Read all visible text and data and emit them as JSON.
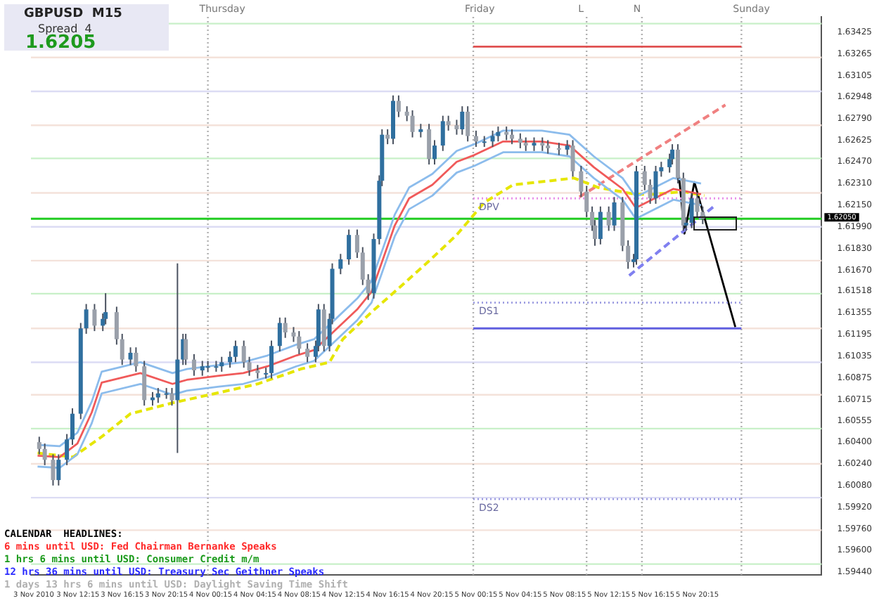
{
  "chart_data": {
    "type": "candlestick",
    "title": "GBPUSD  M15",
    "legend": false,
    "grid": false,
    "colors": [
      "#9aa0aa",
      "#9aa0aa",
      "#9aa0aa",
      "#2f6f9f",
      "#2f6f9f",
      "#2f6f9f",
      "#2f6f9f",
      "#2f6f9f",
      "#9aa0aa",
      "#2f6f9f",
      "#2f6f9f",
      "#9aa0aa",
      "#9aa0aa",
      "#2f6f9f",
      "#9aa0aa",
      "#9aa0aa",
      "#2f6f9f",
      "#2f6f9f",
      "#2f6f9f",
      "#9aa0aa",
      "#2f6f9f",
      "#2f6f9f",
      "#9aa0aa",
      "#9aa0aa",
      "#2f6f9f",
      "#2f6f9f",
      "#2f6f9f",
      "#2f6f9f",
      "#2f6f9f",
      "#2f6f9f",
      "#9aa0aa",
      "#9aa0aa",
      "#9aa0aa",
      "#2f6f9f",
      "#2f6f9f",
      "#2f6f9f",
      "#9aa0aa",
      "#9aa0aa",
      "#9aa0aa",
      "#9aa0aa",
      "#2f6f9f",
      "#2f6f9f",
      "#9aa0aa",
      "#2f6f9f",
      "#2f6f9f",
      "#2f6f9f",
      "#2f6f9f",
      "#9aa0aa",
      "#9aa0aa",
      "#9aa0aa",
      "#2f6f9f",
      "#2f6f9f",
      "#2f6f9f",
      "#9aa0aa",
      "#2f6f9f",
      "#9aa0aa",
      "#9aa0aa",
      "#9aa0aa",
      "#2f6f9f",
      "#9aa0aa",
      "#2f6f9f",
      "#2f6f9f",
      "#9aa0aa",
      "#9aa0aa",
      "#2f6f9f",
      "#9aa0aa",
      "#9aa0aa",
      "#2f6f9f",
      "#2f6f9f",
      "#2f6f9f",
      "#9aa0aa",
      "#9aa0aa",
      "#9aa0aa",
      "#9aa0aa",
      "#2f6f9f",
      "#9aa0aa",
      "#9aa0aa",
      "#9aa0aa",
      "#2f6f9f",
      "#9aa0aa",
      "#9aa0aa",
      "#9aa0aa",
      "#9aa0aa",
      "#9aa0aa",
      "#2f6f9f",
      "#9aa0aa",
      "#2f6f9f",
      "#9aa0aa",
      "#9aa0aa",
      "#2f6f9f",
      "#2f6f9f",
      "#9aa0aa",
      "#9aa0aa",
      "#2f6f9f",
      "#2f6f9f",
      "#2f6f9f",
      "#2f6f9f",
      "#9aa0aa",
      "#9aa0aa",
      "#2f6f9f",
      "#2f6f9f",
      "#9aa0aa",
      "#9aa0aa"
    ],
    "annotations": [
      "Spread  4",
      "1.6205",
      "CALENDAR  HEADLINES:",
      "6 mins until USD: Fed Chairman Bernanke Speaks",
      "1 hrs 6 mins until USD: Consumer Credit m/m",
      "12 hrs 36 mins until USD: Treasury Sec Geithner Speaks",
      "1 days 13 hrs 6 mins until USD: Daylight Saving Time Shift"
    ],
    "xlim": [
      "2010-11-03T08:00",
      "2010-11-06T07:30"
    ],
    "xticks": [
      {
        "value": "2010-11-03T08:15",
        "label": "3 Nov 2010"
      },
      {
        "value": "2010-11-03T12:15",
        "label": "3 Nov 12:15"
      },
      {
        "value": "2010-11-03T16:15",
        "label": "3 Nov 16:15"
      },
      {
        "value": "2010-11-03T20:15",
        "label": "3 Nov 20:15"
      },
      {
        "value": "2010-11-04T00:15",
        "label": "4 Nov 00:15"
      },
      {
        "value": "2010-11-04T04:15",
        "label": "4 Nov 04:15"
      },
      {
        "value": "2010-11-04T08:15",
        "label": "4 Nov 08:15"
      },
      {
        "value": "2010-11-04T12:15",
        "label": "4 Nov 12:15"
      },
      {
        "value": "2010-11-04T16:15",
        "label": "4 Nov 16:15"
      },
      {
        "value": "2010-11-04T20:15",
        "label": "4 Nov 20:15"
      },
      {
        "value": "2010-11-05T00:15",
        "label": "5 Nov 00:15"
      },
      {
        "value": "2010-11-05T04:15",
        "label": "5 Nov 04:15"
      },
      {
        "value": "2010-11-05T08:15",
        "label": "5 Nov 08:15"
      },
      {
        "value": "2010-11-05T12:15",
        "label": "5 Nov 12:15"
      },
      {
        "value": "2010-11-05T16:15",
        "label": "5 Nov 16:15"
      },
      {
        "value": "2010-11-05T20:15",
        "label": "5 Nov 20:15"
      }
    ],
    "ylim": [
      1.5942,
      1.6354
    ],
    "yticks": [
      1.63425,
      1.63265,
      1.63105,
      1.62948,
      {
        "value": 1.6279,
        "label": "1.62790"
      },
      1.62625,
      {
        "value": 1.6247,
        "label": "1.62470"
      },
      {
        "value": 1.6231,
        "label": "1.62310"
      },
      {
        "value": 1.6215,
        "label": "1.62150"
      },
      {
        "value": 1.6199,
        "label": "1.61990"
      },
      {
        "value": 1.6183,
        "label": "1.61830"
      },
      {
        "value": 1.6167,
        "label": "1.61670"
      },
      1.61518,
      1.61355,
      1.61195,
      1.61035,
      1.60875,
      1.60715,
      1.60555,
      {
        "value": 1.604,
        "label": "1.60400"
      },
      {
        "value": 1.6024,
        "label": "1.60240"
      },
      {
        "value": 1.6008,
        "label": "1.60080"
      },
      {
        "value": 1.5992,
        "label": "1.59920"
      },
      {
        "value": 1.5976,
        "label": "1.59760"
      },
      {
        "value": 1.596,
        "label": "1.59600"
      },
      {
        "value": 1.5944,
        "label": "1.59440"
      }
    ],
    "x": [
      "2010-11-03T08:45",
      "2010-11-03T09:15",
      "2010-11-03T10:00",
      "2010-11-03T10:30",
      "2010-11-03T11:15",
      "2010-11-03T11:45",
      "2010-11-03T12:30",
      "2010-11-03T13:00",
      "2010-11-03T13:45",
      "2010-11-03T14:30",
      "2010-11-03T14:45",
      "2010-11-03T15:45",
      "2010-11-03T16:15",
      "2010-11-03T17:00",
      "2010-11-03T17:30",
      "2010-11-03T18:15",
      "2010-11-03T19:00",
      "2010-11-03T19:30",
      "2010-11-03T20:15",
      "2010-11-03T20:45",
      "2010-11-03T21:15",
      "2010-11-03T21:45",
      "2010-11-03T22:00",
      "2010-11-03T22:45",
      "2010-11-03T23:30",
      "2010-11-04T00:00",
      "2010-11-04T00:45",
      "2010-11-04T01:15",
      "2010-11-04T02:00",
      "2010-11-04T02:30",
      "2010-11-04T03:15",
      "2010-11-04T03:45",
      "2010-11-04T04:30",
      "2010-11-04T05:15",
      "2010-11-04T05:45",
      "2010-11-04T06:30",
      "2010-11-04T07:00",
      "2010-11-04T07:45",
      "2010-11-04T08:15",
      "2010-11-04T09:00",
      "2010-11-04T09:45",
      "2010-11-04T10:00",
      "2010-11-04T10:30",
      "2010-11-04T11:00",
      "2010-11-04T11:15",
      "2010-11-04T12:00",
      "2010-11-04T12:45",
      "2010-11-04T13:30",
      "2010-11-04T14:00",
      "2010-11-04T14:30",
      "2010-11-04T15:00",
      "2010-11-04T15:30",
      "2010-11-04T15:45",
      "2010-11-04T16:15",
      "2010-11-04T16:45",
      "2010-11-04T17:15",
      "2010-11-04T18:00",
      "2010-11-04T18:30",
      "2010-11-04T19:15",
      "2010-11-04T20:00",
      "2010-11-04T20:30",
      "2010-11-04T21:15",
      "2010-11-04T21:45",
      "2010-11-04T22:30",
      "2010-11-04T23:00",
      "2010-11-04T23:30",
      "2010-11-05T00:15",
      "2010-11-05T01:00",
      "2010-11-05T01:45",
      "2010-11-05T02:15",
      "2010-11-05T03:00",
      "2010-11-05T03:30",
      "2010-11-05T04:15",
      "2010-11-05T04:45",
      "2010-11-05T05:30",
      "2010-11-05T06:15",
      "2010-11-05T06:45",
      "2010-11-05T07:45",
      "2010-11-05T08:30",
      "2010-11-05T09:00",
      "2010-11-05T09:45",
      "2010-11-05T10:15",
      "2010-11-05T10:45",
      "2010-11-05T11:00",
      "2010-11-05T11:30",
      "2010-11-05T12:15",
      "2010-11-05T12:45",
      "2010-11-05T13:30",
      "2010-11-05T14:00",
      "2010-11-05T14:30",
      "2010-11-05T14:45",
      "2010-11-05T15:30",
      "2010-11-05T16:00",
      "2010-11-05T16:30",
      "2010-11-05T17:00",
      "2010-11-05T17:45",
      "2010-11-05T18:00",
      "2010-11-05T18:30",
      "2010-11-05T19:00",
      "2010-11-05T19:15",
      "2010-11-05T19:45",
      "2010-11-05T20:15",
      "2010-11-05T20:45"
    ],
    "ohlc": [
      [
        1.604,
        1.6044,
        1.6031,
        1.6035
      ],
      [
        1.6035,
        1.6039,
        1.6023,
        1.6027
      ],
      [
        1.6027,
        1.6031,
        1.6008,
        1.6012
      ],
      [
        1.6012,
        1.6031,
        1.6008,
        1.6027
      ],
      [
        1.6027,
        1.6046,
        1.6023,
        1.6042
      ],
      [
        1.6042,
        1.6065,
        1.6038,
        1.6061
      ],
      [
        1.6061,
        1.6128,
        1.6057,
        1.6124
      ],
      [
        1.6124,
        1.6142,
        1.612,
        1.6138
      ],
      [
        1.6138,
        1.6142,
        1.6122,
        1.6126
      ],
      [
        1.6126,
        1.6135,
        1.6122,
        1.6131
      ],
      [
        1.6131,
        1.615,
        1.6127,
        1.6136
      ],
      [
        1.6136,
        1.614,
        1.6112,
        1.6116
      ],
      [
        1.6116,
        1.612,
        1.6097,
        1.6101
      ],
      [
        1.6101,
        1.611,
        1.6097,
        1.6106
      ],
      [
        1.6106,
        1.611,
        1.6092,
        1.6096
      ],
      [
        1.6096,
        1.61,
        1.6067,
        1.6071
      ],
      [
        1.6071,
        1.6077,
        1.6067,
        1.6073
      ],
      [
        1.6073,
        1.608,
        1.6069,
        1.6076
      ],
      [
        1.6076,
        1.608,
        1.6072,
        1.6076
      ],
      [
        1.6076,
        1.608,
        1.6067,
        1.6071
      ],
      [
        1.6071,
        1.6172,
        1.6032,
        1.6101
      ],
      [
        1.6101,
        1.612,
        1.6097,
        1.6116
      ],
      [
        1.6116,
        1.612,
        1.6097,
        1.6101
      ],
      [
        1.6101,
        1.6105,
        1.6089,
        1.6093
      ],
      [
        1.6093,
        1.61,
        1.6089,
        1.6096
      ],
      [
        1.6096,
        1.61,
        1.6092,
        1.6096
      ],
      [
        1.6096,
        1.61,
        1.6092,
        1.6096
      ],
      [
        1.6096,
        1.6103,
        1.6092,
        1.6099
      ],
      [
        1.6099,
        1.6107,
        1.6095,
        1.6103
      ],
      [
        1.6103,
        1.6115,
        1.6099,
        1.6111
      ],
      [
        1.6111,
        1.6115,
        1.6095,
        1.6099
      ],
      [
        1.6099,
        1.6103,
        1.6089,
        1.6093
      ],
      [
        1.6093,
        1.6097,
        1.6087,
        1.6091
      ],
      [
        1.6091,
        1.6095,
        1.6087,
        1.6091
      ],
      [
        1.6091,
        1.6115,
        1.6087,
        1.6111
      ],
      [
        1.6111,
        1.6132,
        1.6107,
        1.6128
      ],
      [
        1.6128,
        1.6132,
        1.6117,
        1.6121
      ],
      [
        1.6121,
        1.6125,
        1.6114,
        1.6118
      ],
      [
        1.6118,
        1.6122,
        1.6105,
        1.6109
      ],
      [
        1.6109,
        1.6113,
        1.6099,
        1.6103
      ],
      [
        1.6103,
        1.6115,
        1.6099,
        1.6111
      ],
      [
        1.6111,
        1.6142,
        1.6107,
        1.6138
      ],
      [
        1.6138,
        1.6142,
        1.6107,
        1.6111
      ],
      [
        1.6111,
        1.6135,
        1.6107,
        1.6131
      ],
      [
        1.6131,
        1.6172,
        1.6127,
        1.6168
      ],
      [
        1.6168,
        1.6179,
        1.6164,
        1.6175
      ],
      [
        1.6175,
        1.6197,
        1.6171,
        1.6193
      ],
      [
        1.6193,
        1.6197,
        1.6176,
        1.618
      ],
      [
        1.618,
        1.6184,
        1.6156,
        1.616
      ],
      [
        1.616,
        1.6164,
        1.6145,
        1.615
      ],
      [
        1.615,
        1.6194,
        1.6146,
        1.619
      ],
      [
        1.619,
        1.6237,
        1.6186,
        1.6233
      ],
      [
        1.6233,
        1.6271,
        1.6229,
        1.6267
      ],
      [
        1.6267,
        1.6271,
        1.626,
        1.6264
      ],
      [
        1.6264,
        1.6296,
        1.626,
        1.6292
      ],
      [
        1.6292,
        1.6296,
        1.628,
        1.6284
      ],
      [
        1.6284,
        1.6288,
        1.6277,
        1.6281
      ],
      [
        1.6281,
        1.6285,
        1.6265,
        1.6269
      ],
      [
        1.6269,
        1.6275,
        1.6265,
        1.6271
      ],
      [
        1.6271,
        1.6275,
        1.6245,
        1.6249
      ],
      [
        1.6249,
        1.6263,
        1.6245,
        1.6259
      ],
      [
        1.6259,
        1.6281,
        1.6255,
        1.6277
      ],
      [
        1.6277,
        1.6281,
        1.627,
        1.6274
      ],
      [
        1.6274,
        1.6278,
        1.6267,
        1.6271
      ],
      [
        1.6271,
        1.6288,
        1.6267,
        1.6284
      ],
      [
        1.6284,
        1.6288,
        1.6262,
        1.6266
      ],
      [
        1.6266,
        1.627,
        1.6258,
        1.6262
      ],
      [
        1.6262,
        1.6266,
        1.6258,
        1.6262
      ],
      [
        1.6262,
        1.627,
        1.6258,
        1.6266
      ],
      [
        1.6266,
        1.6273,
        1.6262,
        1.6269
      ],
      [
        1.6269,
        1.6273,
        1.6263,
        1.6267
      ],
      [
        1.6267,
        1.6271,
        1.626,
        1.6264
      ],
      [
        1.6264,
        1.6268,
        1.6257,
        1.6261
      ],
      [
        1.6261,
        1.6265,
        1.6255,
        1.6259
      ],
      [
        1.6259,
        1.6265,
        1.6255,
        1.6261
      ],
      [
        1.6261,
        1.6265,
        1.6255,
        1.6259
      ],
      [
        1.6259,
        1.6263,
        1.6253,
        1.6257
      ],
      [
        1.6257,
        1.6261,
        1.6252,
        1.6256
      ],
      [
        1.6256,
        1.6263,
        1.6252,
        1.6259
      ],
      [
        1.6259,
        1.6263,
        1.6236,
        1.624
      ],
      [
        1.624,
        1.6244,
        1.6221,
        1.6225
      ],
      [
        1.6225,
        1.6229,
        1.6206,
        1.621
      ],
      [
        1.621,
        1.6214,
        1.6196,
        1.62
      ],
      [
        1.62,
        1.6204,
        1.6185,
        1.619
      ],
      [
        1.619,
        1.6214,
        1.6186,
        1.621
      ],
      [
        1.621,
        1.6214,
        1.6196,
        1.62
      ],
      [
        1.62,
        1.6221,
        1.6196,
        1.6217
      ],
      [
        1.6217,
        1.6221,
        1.6181,
        1.6185
      ],
      [
        1.6185,
        1.6189,
        1.6168,
        1.6173
      ],
      [
        1.6173,
        1.6179,
        1.6169,
        1.6175
      ],
      [
        1.6175,
        1.6244,
        1.6171,
        1.624
      ],
      [
        1.624,
        1.6244,
        1.6226,
        1.623
      ],
      [
        1.623,
        1.6234,
        1.6216,
        1.622
      ],
      [
        1.622,
        1.6244,
        1.6216,
        1.624
      ],
      [
        1.624,
        1.6247,
        1.6236,
        1.6243
      ],
      [
        1.6243,
        1.6253,
        1.6239,
        1.6249
      ],
      [
        1.6249,
        1.626,
        1.6245,
        1.6256
      ],
      [
        1.6256,
        1.626,
        1.6231,
        1.6235
      ],
      [
        1.6235,
        1.6239,
        1.6196,
        1.62
      ],
      [
        1.62,
        1.6206,
        1.6196,
        1.6202
      ],
      [
        1.6202,
        1.6224,
        1.6198,
        1.622
      ],
      [
        1.622,
        1.6224,
        1.6206,
        1.621
      ],
      [
        1.621,
        1.6214,
        1.6201,
        1.6205
      ]
    ],
    "series": [
      {
        "type": "line",
        "color": "#8cbcec",
        "x": [
          "2010-11-03T08:36",
          "2010-11-03T10:36",
          "2010-11-03T12:12",
          "2010-11-03T13:30",
          "2010-11-03T14:24",
          "2010-11-03T17:54",
          "2010-11-03T20:48",
          "2010-11-03T22:06",
          "2010-11-04T01:00",
          "2010-11-04T03:12",
          "2010-11-04T05:24",
          "2010-11-04T08:00",
          "2010-11-04T09:36",
          "2010-11-04T11:18",
          "2010-11-04T13:30",
          "2010-11-04T14:48",
          "2010-11-04T16:54",
          "2010-11-04T18:12",
          "2010-11-04T20:18",
          "2010-11-04T22:30",
          "2010-11-05T00:06",
          "2010-11-05T02:42",
          "2010-11-05T06:12",
          "2010-11-05T08:42",
          "2010-11-05T10:54",
          "2010-11-05T13:30",
          "2010-11-05T14:42",
          "2010-11-05T16:24",
          "2010-11-05T18:06",
          "2010-11-05T20:36"
        ],
        "values": [
          1.6038,
          1.6037,
          1.6047,
          1.607,
          1.6092,
          1.6099,
          1.6091,
          1.6094,
          1.6097,
          1.6099,
          1.6104,
          1.6112,
          1.6116,
          1.6129,
          1.6146,
          1.6159,
          1.6208,
          1.6228,
          1.6238,
          1.6255,
          1.626,
          1.627,
          1.627,
          1.6267,
          1.6251,
          1.6235,
          1.6221,
          1.6228,
          1.6235,
          1.6231
        ]
      },
      {
        "type": "line",
        "color": "#f05a5a",
        "x": [
          "2010-11-03T08:36",
          "2010-11-03T10:36",
          "2010-11-03T12:12",
          "2010-11-03T13:30",
          "2010-11-03T14:24",
          "2010-11-03T17:54",
          "2010-11-03T20:48",
          "2010-11-03T22:06",
          "2010-11-04T01:00",
          "2010-11-04T03:12",
          "2010-11-04T05:24",
          "2010-11-04T08:00",
          "2010-11-04T09:36",
          "2010-11-04T11:18",
          "2010-11-04T13:30",
          "2010-11-04T14:48",
          "2010-11-04T16:54",
          "2010-11-04T18:12",
          "2010-11-04T20:18",
          "2010-11-04T22:30",
          "2010-11-05T00:06",
          "2010-11-05T02:42",
          "2010-11-05T06:12",
          "2010-11-05T08:42",
          "2010-11-05T10:54",
          "2010-11-05T13:30",
          "2010-11-05T14:42",
          "2010-11-05T16:24",
          "2010-11-05T18:06",
          "2010-11-05T20:36"
        ],
        "values": [
          1.603,
          1.6029,
          1.6039,
          1.6062,
          1.6084,
          1.6091,
          1.6083,
          1.6086,
          1.6089,
          1.6091,
          1.6096,
          1.6104,
          1.6108,
          1.6121,
          1.6138,
          1.6151,
          1.62,
          1.622,
          1.623,
          1.6247,
          1.6252,
          1.6262,
          1.6262,
          1.6259,
          1.6243,
          1.6227,
          1.6213,
          1.622,
          1.6227,
          1.6223
        ]
      },
      {
        "type": "line",
        "color": "#8cbcec",
        "x": [
          "2010-11-03T08:36",
          "2010-11-03T10:36",
          "2010-11-03T12:12",
          "2010-11-03T13:30",
          "2010-11-03T14:24",
          "2010-11-03T17:54",
          "2010-11-03T20:48",
          "2010-11-03T22:06",
          "2010-11-04T01:00",
          "2010-11-04T03:12",
          "2010-11-04T05:24",
          "2010-11-04T08:00",
          "2010-11-04T09:36",
          "2010-11-04T11:18",
          "2010-11-04T13:30",
          "2010-11-04T14:48",
          "2010-11-04T16:54",
          "2010-11-04T18:12",
          "2010-11-04T20:18",
          "2010-11-04T22:30",
          "2010-11-05T00:06",
          "2010-11-05T02:42",
          "2010-11-05T06:12",
          "2010-11-05T08:42",
          "2010-11-05T10:54",
          "2010-11-05T13:30",
          "2010-11-05T14:42",
          "2010-11-05T16:24",
          "2010-11-05T18:06",
          "2010-11-05T20:36"
        ],
        "values": [
          1.6022,
          1.6021,
          1.6031,
          1.6054,
          1.6076,
          1.6083,
          1.6075,
          1.6078,
          1.6081,
          1.6083,
          1.6088,
          1.6096,
          1.61,
          1.6113,
          1.613,
          1.6143,
          1.6192,
          1.6212,
          1.6222,
          1.6239,
          1.6244,
          1.6254,
          1.6254,
          1.6251,
          1.6235,
          1.6219,
          1.6205,
          1.6212,
          1.6219,
          1.6215
        ]
      },
      {
        "type": "line",
        "color": "#e6e600",
        "line_style": "dashed",
        "x": [
          "2010-11-03T08:36",
          "2010-11-03T11:48",
          "2010-11-03T14:24",
          "2010-11-03T17:00",
          "2010-11-03T20:48",
          "2010-11-04T00:42",
          "2010-11-04T04:30",
          "2010-11-04T08:24",
          "2010-11-04T11:00",
          "2010-11-04T12:12",
          "2010-11-04T14:48",
          "2010-11-04T17:18",
          "2010-11-04T19:54",
          "2010-11-04T22:30",
          "2010-11-05T01:00",
          "2010-11-05T03:36",
          "2010-11-05T07:00",
          "2010-11-05T09:06",
          "2010-11-05T11:18",
          "2010-11-05T14:42",
          "2010-11-05T16:24",
          "2010-11-05T19:00",
          "2010-11-05T20:54"
        ],
        "values": [
          1.6032,
          1.6029,
          1.6044,
          1.6061,
          1.6069,
          1.6076,
          1.6083,
          1.6094,
          1.6099,
          1.6116,
          1.6136,
          1.6154,
          1.6173,
          1.6193,
          1.6217,
          1.623,
          1.6233,
          1.6235,
          1.6228,
          1.6223,
          1.6223,
          1.6225,
          1.6222
        ]
      },
      {
        "type": "line",
        "color": "#e05050",
        "x": [
          "2010-11-05T00:00",
          "2010-11-06T00:15"
        ],
        "values": [
          1.6332,
          1.6332
        ]
      },
      {
        "type": "line",
        "color": "#6060e0",
        "x": [
          "2010-11-05T00:00",
          "2010-11-06T00:15"
        ],
        "values": [
          1.6124,
          1.6124
        ]
      },
      {
        "type": "line",
        "name": "DPV",
        "color": "#e890e8",
        "line_style": "dotted",
        "x": [
          "2010-11-05T00:00",
          "2010-11-06T00:15"
        ],
        "values": [
          1.622,
          1.622
        ]
      },
      {
        "type": "line",
        "name": "DS1",
        "color": "#9a9ae0",
        "line_style": "dotted",
        "x": [
          "2010-11-05T00:00",
          "2010-11-06T00:15"
        ],
        "values": [
          1.6143,
          1.6143
        ]
      },
      {
        "type": "line",
        "name": "DS2",
        "color": "#9a9ae0",
        "line_style": "dotted",
        "x": [
          "2010-11-05T00:00",
          "2010-11-06T00:15"
        ],
        "values": [
          1.5998,
          1.5998
        ]
      },
      {
        "type": "line",
        "color": "#f08080",
        "line_style": "dashed",
        "x": [
          "2010-11-05T09:36",
          "2010-11-05T22:48"
        ],
        "values": [
          1.6221,
          1.6289
        ]
      },
      {
        "type": "line",
        "color": "#8080f0",
        "line_style": "dashed",
        "x": [
          "2010-11-05T14:06",
          "2010-11-05T21:54"
        ],
        "values": [
          1.6163,
          1.6215
        ]
      },
      {
        "type": "line",
        "color": "#000000",
        "x": [
          "2010-11-05T18:36",
          "2010-11-05T19:06",
          "2010-11-05T20:00",
          "2010-11-05T23:42"
        ],
        "values": [
          1.6237,
          1.6194,
          1.6232,
          1.6125
        ]
      }
    ],
    "ref_lines": [
      {
        "axis": "y",
        "value": 1.6349,
        "color": "#c8f0c8"
      },
      {
        "axis": "y",
        "value": 1.6324,
        "color": "#f4e2da"
      },
      {
        "axis": "y",
        "value": 1.6299,
        "color": "#dcdcf4"
      },
      {
        "axis": "y",
        "value": 1.6274,
        "color": "#f4e2da"
      },
      {
        "axis": "y",
        "value": 1.62495,
        "color": "#c8f0c8"
      },
      {
        "axis": "y",
        "value": 1.6224,
        "color": "#f4e2da"
      },
      {
        "axis": "y",
        "value": 1.6199,
        "color": "#dcdcf4"
      },
      {
        "axis": "y",
        "value": 1.6174,
        "color": "#f4e2da"
      },
      {
        "axis": "y",
        "value": 1.61496,
        "color": "#c8f0c8"
      },
      {
        "axis": "y",
        "value": 1.6124,
        "color": "#f4e2da"
      },
      {
        "axis": "y",
        "value": 1.6099,
        "color": "#dcdcf4"
      },
      {
        "axis": "y",
        "value": 1.6075,
        "color": "#f4e2da"
      },
      {
        "axis": "y",
        "value": 1.605,
        "color": "#c8f0c8"
      },
      {
        "axis": "y",
        "value": 1.6024,
        "color": "#f4e2da"
      },
      {
        "axis": "y",
        "value": 1.5999,
        "color": "#dcdcf4"
      },
      {
        "axis": "y",
        "value": 1.5975,
        "color": "#f4e2da"
      },
      {
        "axis": "y",
        "value": 1.595,
        "color": "#c8f0c8"
      },
      {
        "axis": "x",
        "value": "2010-11-04T00:00",
        "label": "Thursday",
        "color": "#b0b0b0",
        "line_style": "dotted"
      },
      {
        "axis": "x",
        "value": "2010-11-05T00:00",
        "label": "Friday",
        "color": "#b0b0b0",
        "line_style": "dotted"
      },
      {
        "axis": "x",
        "value": "2010-11-05T10:15",
        "label": "L",
        "color": "#b0b0b0",
        "line_style": "dotted"
      },
      {
        "axis": "x",
        "value": "2010-11-05T15:15",
        "label": "N",
        "color": "#b0b0b0",
        "line_style": "dotted"
      },
      {
        "axis": "x",
        "value": "2010-11-06T00:15",
        "label": "Sunday",
        "color": "#b0b0b0",
        "line_style": "dotted"
      },
      {
        "axis": "y",
        "value": 1.6205,
        "label": "1.62050",
        "color": "#22cc22"
      }
    ]
  }
}
